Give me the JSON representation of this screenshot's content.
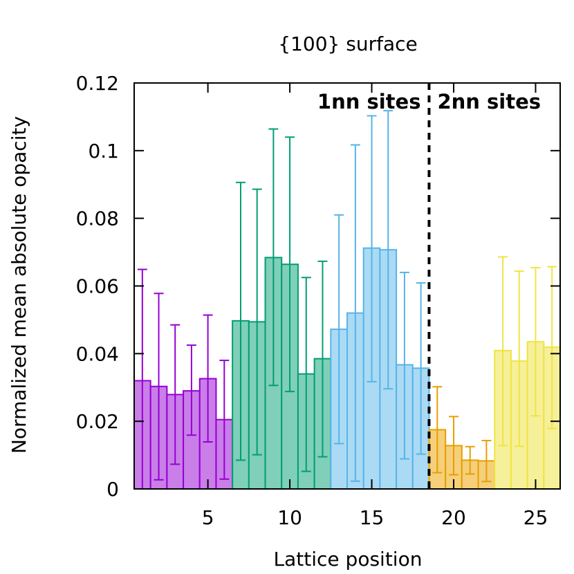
{
  "chart_data": {
    "type": "bar",
    "title": "{100} surface",
    "xlabel": "Lattice position",
    "ylabel": "Normalized mean absolute opacity",
    "xlim": [
      0.5,
      26.5
    ],
    "ylim": [
      0,
      0.12
    ],
    "xticks": [
      5,
      10,
      15,
      20,
      25
    ],
    "yticks": [
      "0",
      "0.02",
      "0.04",
      "0.06",
      "0.08",
      "0.1",
      "0.12"
    ],
    "grid": false,
    "divider_x": 18.5,
    "annotations": [
      "1nn sites",
      "2nn sites"
    ],
    "groups": [
      {
        "fill": "#c97ee8",
        "stroke": "#9400d3",
        "x": [
          1,
          2,
          3,
          4,
          5,
          6
        ],
        "values": [
          0.032,
          0.0303,
          0.0279,
          0.029,
          0.0326,
          0.0205
        ],
        "err_low": [
          0,
          0.0027,
          0.0073,
          0.0159,
          0.0139,
          0.0029
        ],
        "err_high": [
          0.0649,
          0.0578,
          0.0485,
          0.0425,
          0.0514,
          0.038
        ]
      },
      {
        "fill": "#80cfb8",
        "stroke": "#009e73",
        "x": [
          7,
          8,
          9,
          10,
          11,
          12
        ],
        "values": [
          0.0497,
          0.0494,
          0.0684,
          0.0664,
          0.034,
          0.0385
        ],
        "err_low": [
          0.0085,
          0.0101,
          0.0306,
          0.0288,
          0.0052,
          0.0095
        ],
        "err_high": [
          0.0906,
          0.0886,
          0.1064,
          0.104,
          0.0625,
          0.0673
        ]
      },
      {
        "fill": "#abdaf4",
        "stroke": "#56b4e9",
        "x": [
          13,
          14,
          15,
          16,
          17,
          18
        ],
        "values": [
          0.0472,
          0.052,
          0.0712,
          0.0707,
          0.0367,
          0.0357
        ],
        "err_low": [
          0.0134,
          0.0023,
          0.0317,
          0.0296,
          0.0089,
          0.0103
        ],
        "err_high": [
          0.081,
          0.1017,
          0.1103,
          0.1118,
          0.064,
          0.0609
        ]
      },
      {
        "fill": "#f5cf7a",
        "stroke": "#e69f00",
        "x": [
          19,
          20,
          21,
          22
        ],
        "values": [
          0.0175,
          0.0128,
          0.0085,
          0.0083
        ],
        "err_low": [
          0.0048,
          0.0042,
          0.0044,
          0.0022
        ],
        "err_high": [
          0.0302,
          0.0214,
          0.0125,
          0.0143
        ]
      },
      {
        "fill": "#f6f09a",
        "stroke": "#f0e442",
        "x": [
          23,
          24,
          25,
          26
        ],
        "values": [
          0.0409,
          0.0378,
          0.0435,
          0.0419
        ],
        "err_low": [
          0.0128,
          0.0126,
          0.0216,
          0.0179
        ],
        "err_high": [
          0.0686,
          0.0644,
          0.0654,
          0.0657
        ]
      }
    ]
  }
}
